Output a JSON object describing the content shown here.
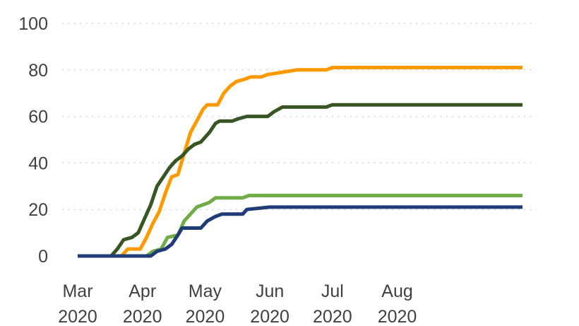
{
  "chart_data": {
    "type": "line",
    "title": "",
    "xlabel": "",
    "ylabel": "",
    "x_axis": {
      "type": "date",
      "range": [
        "2020-03-01",
        "2020-09-30"
      ],
      "ticks": [
        {
          "date": "2020-03-01",
          "label": [
            "Mar",
            "2020"
          ]
        },
        {
          "date": "2020-04-01",
          "label": [
            "Apr",
            "2020"
          ]
        },
        {
          "date": "2020-05-01",
          "label": [
            "May",
            "2020"
          ]
        },
        {
          "date": "2020-06-01",
          "label": [
            "Jun",
            "2020"
          ]
        },
        {
          "date": "2020-07-01",
          "label": [
            "Jul",
            "2020"
          ]
        },
        {
          "date": "2020-08-01",
          "label": [
            "Aug",
            "2020"
          ]
        }
      ]
    },
    "y_axis": {
      "range": [
        0,
        100
      ],
      "ticks": [
        0,
        20,
        40,
        60,
        80,
        100
      ],
      "grid": "dotted horizontal"
    },
    "legend": "none",
    "series": [
      {
        "color": "#FF9900",
        "points": [
          [
            "2020-03-01",
            0
          ],
          [
            "2020-03-22",
            0
          ],
          [
            "2020-03-25",
            3
          ],
          [
            "2020-03-31",
            3
          ],
          [
            "2020-04-03",
            8
          ],
          [
            "2020-04-06",
            14
          ],
          [
            "2020-04-09",
            19
          ],
          [
            "2020-04-12",
            27
          ],
          [
            "2020-04-15",
            34
          ],
          [
            "2020-04-18",
            35
          ],
          [
            "2020-04-21",
            44
          ],
          [
            "2020-04-24",
            53
          ],
          [
            "2020-04-27",
            58
          ],
          [
            "2020-04-30",
            63
          ],
          [
            "2020-05-02",
            65
          ],
          [
            "2020-05-07",
            65
          ],
          [
            "2020-05-10",
            70
          ],
          [
            "2020-05-13",
            73
          ],
          [
            "2020-05-16",
            75
          ],
          [
            "2020-05-20",
            76
          ],
          [
            "2020-05-23",
            77
          ],
          [
            "2020-05-28",
            77
          ],
          [
            "2020-05-31",
            78
          ],
          [
            "2020-06-07",
            79
          ],
          [
            "2020-06-14",
            80
          ],
          [
            "2020-06-28",
            80
          ],
          [
            "2020-07-01",
            81
          ],
          [
            "2020-09-30",
            81
          ]
        ]
      },
      {
        "color": "#375623",
        "points": [
          [
            "2020-03-01",
            0
          ],
          [
            "2020-03-17",
            0
          ],
          [
            "2020-03-20",
            3
          ],
          [
            "2020-03-23",
            7
          ],
          [
            "2020-03-27",
            8
          ],
          [
            "2020-03-30",
            10
          ],
          [
            "2020-04-02",
            16
          ],
          [
            "2020-04-05",
            22
          ],
          [
            "2020-04-08",
            30
          ],
          [
            "2020-04-11",
            34
          ],
          [
            "2020-04-14",
            38
          ],
          [
            "2020-04-17",
            41
          ],
          [
            "2020-04-20",
            43
          ],
          [
            "2020-04-23",
            46
          ],
          [
            "2020-04-26",
            48
          ],
          [
            "2020-04-29",
            49
          ],
          [
            "2020-05-03",
            53
          ],
          [
            "2020-05-06",
            57
          ],
          [
            "2020-05-08",
            58
          ],
          [
            "2020-05-14",
            58
          ],
          [
            "2020-05-17",
            59
          ],
          [
            "2020-05-21",
            60
          ],
          [
            "2020-05-31",
            60
          ],
          [
            "2020-06-03",
            62
          ],
          [
            "2020-06-07",
            64
          ],
          [
            "2020-06-28",
            64
          ],
          [
            "2020-07-01",
            65
          ],
          [
            "2020-09-30",
            65
          ]
        ]
      },
      {
        "color": "#70AD47",
        "points": [
          [
            "2020-03-01",
            0
          ],
          [
            "2020-04-03",
            0
          ],
          [
            "2020-04-06",
            2
          ],
          [
            "2020-04-10",
            3
          ],
          [
            "2020-04-13",
            8
          ],
          [
            "2020-04-18",
            9
          ],
          [
            "2020-04-21",
            15
          ],
          [
            "2020-04-24",
            18
          ],
          [
            "2020-04-27",
            21
          ],
          [
            "2020-05-03",
            23
          ],
          [
            "2020-05-06",
            25
          ],
          [
            "2020-05-19",
            25
          ],
          [
            "2020-05-22",
            26
          ],
          [
            "2020-09-30",
            26
          ]
        ]
      },
      {
        "color": "#1F3C78",
        "points": [
          [
            "2020-03-01",
            0
          ],
          [
            "2020-04-05",
            0
          ],
          [
            "2020-04-08",
            2
          ],
          [
            "2020-04-12",
            3
          ],
          [
            "2020-04-15",
            5
          ],
          [
            "2020-04-18",
            9
          ],
          [
            "2020-04-20",
            12
          ],
          [
            "2020-04-29",
            12
          ],
          [
            "2020-05-02",
            15
          ],
          [
            "2020-05-06",
            17
          ],
          [
            "2020-05-09",
            18
          ],
          [
            "2020-05-19",
            18
          ],
          [
            "2020-05-21",
            20
          ],
          [
            "2020-06-01",
            21
          ],
          [
            "2020-09-30",
            21
          ]
        ]
      }
    ]
  }
}
